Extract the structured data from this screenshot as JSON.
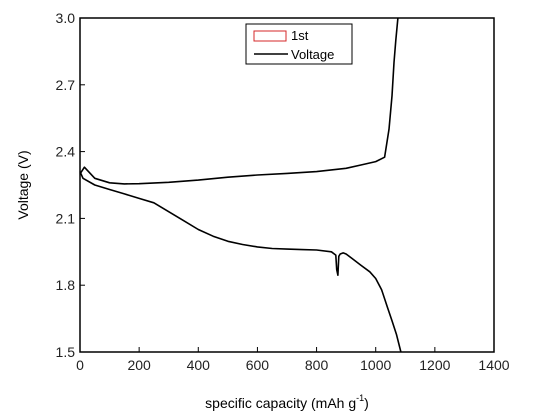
{
  "chart_data": {
    "type": "line",
    "xlabel": "specific capacity (mAh g",
    "xlabel_sup": "-1",
    "xlabel_end": ")",
    "ylabel": "Voltage (V)",
    "xlim": [
      0,
      1400
    ],
    "ylim": [
      1.5,
      3.0
    ],
    "xticks": [
      "0",
      "200",
      "400",
      "600",
      "800",
      "1000",
      "1200",
      "1400"
    ],
    "yticks": [
      "1.5",
      "1.8",
      "2.1",
      "2.4",
      "2.7",
      "3.0"
    ],
    "grid": false,
    "legend_position": "top-center",
    "legend": [
      {
        "label": "1st",
        "color": "#d62728"
      },
      {
        "label": "Voltage",
        "color": "#000000"
      }
    ],
    "series": [
      {
        "name": "Voltage",
        "role": "discharge",
        "color": "#000000",
        "x": [
          0,
          10,
          50,
          100,
          150,
          200,
          250,
          300,
          350,
          400,
          450,
          500,
          550,
          600,
          650,
          700,
          750,
          800,
          850,
          865,
          868,
          872,
          875,
          880,
          890,
          900,
          920,
          950,
          980,
          1000,
          1020,
          1040,
          1055,
          1070,
          1085
        ],
        "y": [
          2.31,
          2.28,
          2.25,
          2.23,
          2.21,
          2.19,
          2.17,
          2.13,
          2.09,
          2.05,
          2.02,
          1.997,
          1.983,
          1.972,
          1.965,
          1.962,
          1.96,
          1.958,
          1.95,
          1.935,
          1.87,
          1.845,
          1.93,
          1.94,
          1.945,
          1.94,
          1.92,
          1.89,
          1.86,
          1.83,
          1.78,
          1.7,
          1.64,
          1.58,
          1.5
        ]
      },
      {
        "name": "Voltage",
        "role": "charge",
        "color": "#000000",
        "x": [
          0,
          15,
          50,
          100,
          150,
          200,
          300,
          400,
          500,
          600,
          700,
          800,
          900,
          950,
          1000,
          1030,
          1045,
          1055,
          1062,
          1068,
          1075
        ],
        "y": [
          2.3,
          2.33,
          2.28,
          2.26,
          2.255,
          2.256,
          2.262,
          2.272,
          2.285,
          2.295,
          2.302,
          2.31,
          2.325,
          2.34,
          2.355,
          2.375,
          2.5,
          2.65,
          2.8,
          2.9,
          3.0
        ]
      }
    ]
  }
}
